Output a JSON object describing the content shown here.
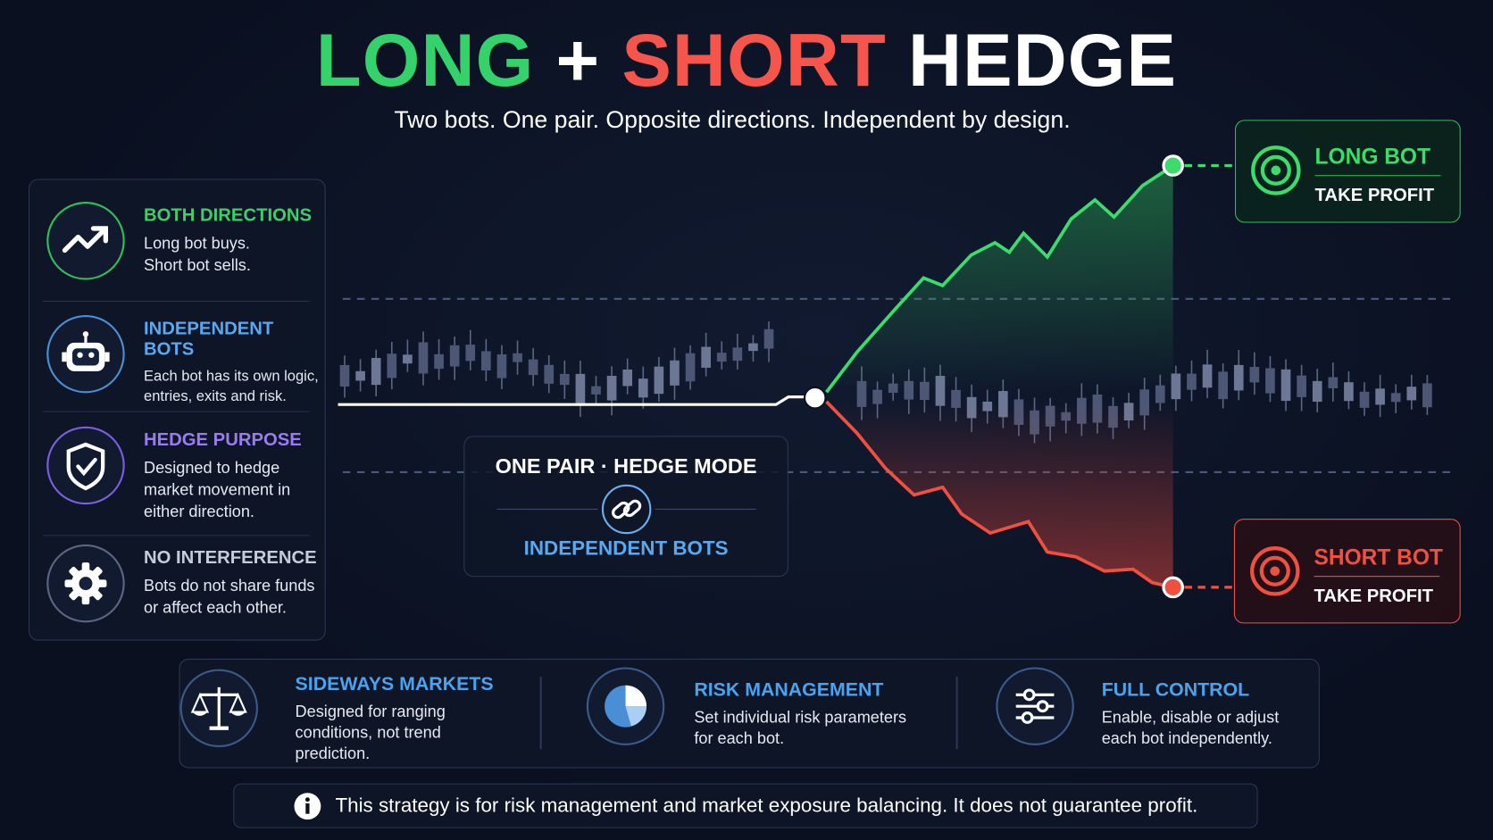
{
  "header": {
    "title_long": "LONG",
    "title_plus": "+",
    "title_short": "SHORT",
    "title_hedge": "HEDGE",
    "subtitle": "Two bots. One pair. Opposite directions. Independent by design."
  },
  "features": [
    {
      "title": "BOTH DIRECTIONS",
      "lines": [
        "Long bot buys.",
        "Short bot sells."
      ]
    },
    {
      "title": "INDEPENDENT BOTS",
      "lines": [
        "Each bot has its own logic,",
        "entries, exits and risk."
      ]
    },
    {
      "title": "HEDGE PURPOSE",
      "lines": [
        "Designed to hedge",
        "market movement in",
        "either direction."
      ]
    },
    {
      "title": "NO INTERFERENCE",
      "lines": [
        "Bots do not share funds",
        "or affect each other."
      ]
    }
  ],
  "center_box": {
    "title": "ONE PAIR · HEDGE MODE",
    "label": "INDEPENDENT BOTS"
  },
  "long_bot": {
    "title": "LONG BOT",
    "label": "TAKE PROFIT"
  },
  "short_bot": {
    "title": "SHORT BOT",
    "label": "TAKE PROFIT"
  },
  "bottom_features": [
    {
      "title": "SIDEWAYS MARKETS",
      "lines": [
        "Designed for ranging",
        "conditions, not trend",
        "prediction."
      ]
    },
    {
      "title": "RISK MANAGEMENT",
      "lines": [
        "Set individual risk parameters",
        "for each bot."
      ]
    },
    {
      "title": "FULL CONTROL",
      "lines": [
        "Enable, disable or adjust",
        "each bot independently."
      ]
    }
  ],
  "disclaimer": "This strategy is for risk management and market exposure balancing. It does not guarantee profit."
}
